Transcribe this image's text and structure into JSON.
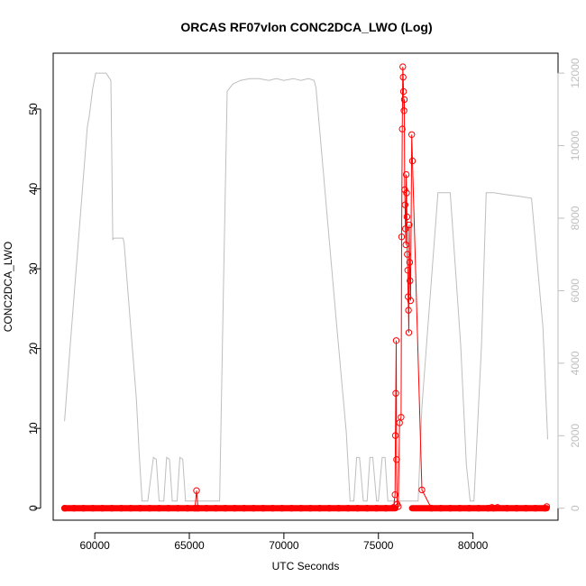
{
  "chart_data": {
    "type": "line",
    "title": "ORCAS RF07vlon CONC2DCA_LWO (Log)",
    "xlabel": "UTC Seconds",
    "ylabel": "CONC2DCA_LWO",
    "xlim": [
      57800,
      84500
    ],
    "ylim": [
      -1.5,
      57
    ],
    "y2lim": [
      -330,
      12550
    ],
    "x_ticks": [
      60000,
      65000,
      70000,
      75000,
      80000
    ],
    "y_ticks": [
      0,
      10,
      20,
      30,
      40,
      50
    ],
    "y2_ticks": [
      0,
      2000,
      4000,
      6000,
      8000,
      10000,
      12000
    ],
    "colors": {
      "primary": "#ff0000",
      "secondary": "#bebebe",
      "axis": "#000000"
    },
    "series": [
      {
        "axis": "right",
        "style": "line",
        "color": "#bebebe",
        "x": [
          58400,
          58700,
          59000,
          59300,
          59600,
          59700,
          59900,
          60050,
          60600,
          60850,
          60950,
          61000,
          61500,
          61550,
          62200,
          62350,
          62500,
          62800,
          62950,
          63100,
          63250,
          63400,
          63650,
          63800,
          63950,
          64100,
          64350,
          64500,
          64650,
          64800,
          65050,
          65200,
          65400,
          66600,
          66800,
          67000,
          67300,
          67700,
          68200,
          68700,
          69200,
          69600,
          70000,
          70500,
          70900,
          71300,
          71600,
          71700,
          71800,
          72300,
          72800,
          73300,
          73500,
          73700,
          73850,
          74000,
          74200,
          74400,
          74550,
          74700,
          74900,
          75000,
          75200,
          75350,
          75500,
          75700,
          75800,
          76000,
          76100,
          76300,
          76350,
          76700,
          77100,
          77300,
          77700,
          78150,
          78300,
          78800,
          79350,
          79650,
          79850,
          80050,
          80450,
          80700,
          81100,
          81700,
          82500,
          83100,
          83700,
          83950
        ],
        "values": [
          2400,
          4500,
          6500,
          8500,
          10500,
          10800,
          11600,
          12000,
          12000,
          11800,
          7400,
          7450,
          7450,
          7300,
          3000,
          1500,
          200,
          200,
          800,
          1400,
          1350,
          200,
          200,
          1400,
          1350,
          200,
          200,
          1400,
          1350,
          200,
          200,
          200,
          200,
          200,
          6000,
          11500,
          11700,
          11800,
          11850,
          11850,
          11800,
          11850,
          11800,
          11850,
          11800,
          11850,
          11800,
          11600,
          11000,
          8000,
          5000,
          2100,
          200,
          200,
          1400,
          1400,
          200,
          200,
          1400,
          1400,
          200,
          200,
          1400,
          1400,
          200,
          200,
          200,
          200,
          200,
          200,
          200,
          200,
          200,
          2800,
          5600,
          8700,
          8700,
          8700,
          4500,
          1200,
          200,
          200,
          4500,
          8700,
          8700,
          8650,
          8600,
          8550,
          5000,
          1900
        ]
      },
      {
        "axis": "left",
        "style": "line+points",
        "color": "#ff0000",
        "x": [
          58400,
          58900,
          59400,
          59900,
          60400,
          60900,
          61400,
          61900,
          62400,
          62900,
          63400,
          63900,
          64400,
          64900,
          65300,
          65380,
          65460,
          65900,
          66400,
          66900,
          67400,
          67900,
          68400,
          68900,
          69400,
          69900,
          70400,
          70900,
          71400,
          71900,
          72400,
          72900,
          73400,
          73900,
          74400,
          74900,
          75400,
          75800,
          75880,
          75900,
          75920,
          75940,
          75960,
          75990,
          76050,
          76120,
          76200,
          76230,
          76260,
          76290,
          76310,
          76330,
          76350,
          76370,
          76390,
          76410,
          76430,
          76450,
          76470,
          76490,
          76510,
          76530,
          76550,
          76570,
          76590,
          76610,
          76630,
          76650,
          76670,
          76700,
          76760,
          76800,
          77300,
          77800,
          78300,
          78800,
          79300,
          79800,
          80300,
          80800,
          81000,
          81100,
          81300,
          81800,
          82300,
          82800,
          83300,
          83800,
          83900
        ],
        "values": [
          0,
          0,
          0,
          0,
          0,
          0,
          0,
          0,
          0,
          0,
          0,
          0,
          0,
          0,
          0,
          2.2,
          0,
          0,
          0,
          0,
          0,
          0,
          0,
          0,
          0,
          0,
          0,
          0,
          0,
          0,
          0,
          0,
          0,
          0,
          0,
          0,
          0,
          0.1,
          1.7,
          9.1,
          14.4,
          21.0,
          6.1,
          0.5,
          0.2,
          10.7,
          11.4,
          34.0,
          47.5,
          55.3,
          54.0,
          52.2,
          49.8,
          51.2,
          39.9,
          38.0,
          35.0,
          33.0,
          41.8,
          39.5,
          36.5,
          31.8,
          29.8,
          26.5,
          24.8,
          22.0,
          35.5,
          30.8,
          28.5,
          26.0,
          46.8,
          43.5,
          2.3,
          0,
          0,
          0,
          0,
          0,
          0,
          0,
          0.1,
          0,
          0.1,
          0,
          0,
          0,
          0,
          0,
          0.2
        ]
      }
    ]
  }
}
